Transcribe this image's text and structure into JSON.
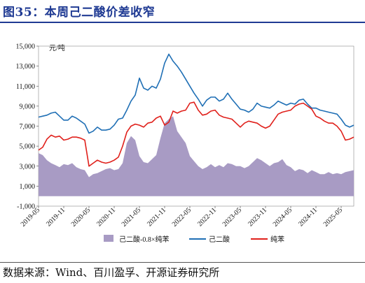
{
  "header": {
    "title": "图35：本周己二酸价差收窄"
  },
  "footer": {
    "source": "数据来源：Wind、百川盈孚、开源证券研究所"
  },
  "chart_data": {
    "type": "area+line",
    "unit_label": "元/吨",
    "ylim": [
      -1000,
      15000
    ],
    "yticks": [
      -1000,
      1000,
      3000,
      5000,
      7000,
      9000,
      11000,
      13000,
      15000
    ],
    "ytick_labels": [
      "-1,000",
      "1,000",
      "3,000",
      "5,000",
      "7,000",
      "9,000",
      "11,000",
      "13,000",
      "15,000"
    ],
    "xlim": [
      "2019-05",
      "2025-08"
    ],
    "xtick_labels": [
      "2019-05",
      "2019-11",
      "2020-05",
      "2020-11",
      "2021-05",
      "2021-11",
      "2022-05",
      "2022-11",
      "2023-05",
      "2023-11",
      "2024-05",
      "2024-11",
      "2025-05"
    ],
    "legend_position": "bottom",
    "x": [
      "2019-05",
      "2019-06",
      "2019-07",
      "2019-08",
      "2019-09",
      "2019-10",
      "2019-11",
      "2019-12",
      "2020-01",
      "2020-02",
      "2020-03",
      "2020-04",
      "2020-05",
      "2020-06",
      "2020-07",
      "2020-08",
      "2020-09",
      "2020-10",
      "2020-11",
      "2020-12",
      "2021-01",
      "2021-02",
      "2021-03",
      "2021-04",
      "2021-05",
      "2021-06",
      "2021-07",
      "2021-08",
      "2021-09",
      "2021-10",
      "2021-11",
      "2021-12",
      "2022-01",
      "2022-02",
      "2022-03",
      "2022-04",
      "2022-05",
      "2022-06",
      "2022-07",
      "2022-08",
      "2022-09",
      "2022-10",
      "2022-11",
      "2022-12",
      "2023-01",
      "2023-02",
      "2023-03",
      "2023-04",
      "2023-05",
      "2023-06",
      "2023-07",
      "2023-08",
      "2023-09",
      "2023-10",
      "2023-11",
      "2023-12",
      "2024-01",
      "2024-02",
      "2024-03",
      "2024-04",
      "2024-05",
      "2024-06",
      "2024-07",
      "2024-08",
      "2024-09",
      "2024-10",
      "2024-11",
      "2024-12",
      "2025-01",
      "2025-02",
      "2025-03",
      "2025-04",
      "2025-05",
      "2025-06",
      "2025-07",
      "2025-08"
    ],
    "series": [
      {
        "name": "己二酸-0.8×纯苯",
        "kind": "area",
        "color": "#a89bc4",
        "values": [
          4300,
          4100,
          3600,
          3300,
          3100,
          2900,
          3200,
          3100,
          3300,
          2900,
          2700,
          2600,
          1900,
          2200,
          2300,
          2500,
          2700,
          2800,
          2600,
          2700,
          3300,
          5300,
          6000,
          5600,
          4000,
          3400,
          3300,
          3700,
          4100,
          5800,
          7300,
          7700,
          8000,
          6500,
          5900,
          5300,
          4000,
          3500,
          3000,
          2700,
          2900,
          3200,
          2900,
          3100,
          2900,
          3300,
          3200,
          3000,
          3000,
          2800,
          3000,
          3400,
          3800,
          3600,
          3300,
          3000,
          3300,
          3400,
          3700,
          3100,
          2900,
          2500,
          2700,
          2600,
          2300,
          2600,
          2400,
          2200,
          2200,
          2400,
          2200,
          2300,
          2200,
          2400,
          2500,
          2600
        ]
      },
      {
        "name": "己二酸",
        "kind": "line",
        "color": "#1f6fb5",
        "values": [
          7900,
          8000,
          8100,
          8300,
          8400,
          8000,
          7600,
          7600,
          8000,
          7800,
          7500,
          7200,
          6300,
          6500,
          6900,
          6600,
          6600,
          6700,
          7100,
          7700,
          7800,
          8600,
          9500,
          10100,
          11800,
          10800,
          10600,
          11000,
          10800,
          11700,
          13300,
          14200,
          13500,
          13000,
          12400,
          11700,
          11000,
          10300,
          9700,
          9000,
          9600,
          9900,
          9900,
          9500,
          9700,
          10300,
          9700,
          9200,
          8700,
          8600,
          8400,
          8700,
          9300,
          9000,
          8900,
          8800,
          9100,
          9500,
          9300,
          9100,
          9300,
          9200,
          9600,
          9700,
          9200,
          8800,
          8800,
          8600,
          8500,
          8400,
          8300,
          8200,
          7700,
          7100,
          6900,
          7100
        ]
      },
      {
        "name": "纯苯",
        "kind": "line",
        "color": "#e0201b",
        "values": [
          4600,
          4900,
          5700,
          6100,
          5900,
          6000,
          5600,
          5700,
          5900,
          5900,
          5800,
          5600,
          3000,
          3300,
          3600,
          3400,
          3300,
          3400,
          3600,
          3900,
          5000,
          6400,
          7000,
          7200,
          7100,
          6900,
          7300,
          7400,
          7800,
          8000,
          7100,
          7400,
          8500,
          8300,
          8500,
          8600,
          9300,
          9400,
          8600,
          8100,
          8200,
          8500,
          8600,
          8100,
          7900,
          7800,
          7700,
          7300,
          6900,
          7300,
          7500,
          7400,
          7300,
          7000,
          6800,
          7000,
          7600,
          8200,
          8400,
          8500,
          8600,
          9000,
          9200,
          9300,
          9000,
          8700,
          8000,
          7800,
          7500,
          7300,
          7300,
          7000,
          6500,
          5600,
          5700,
          5900
        ]
      }
    ]
  }
}
